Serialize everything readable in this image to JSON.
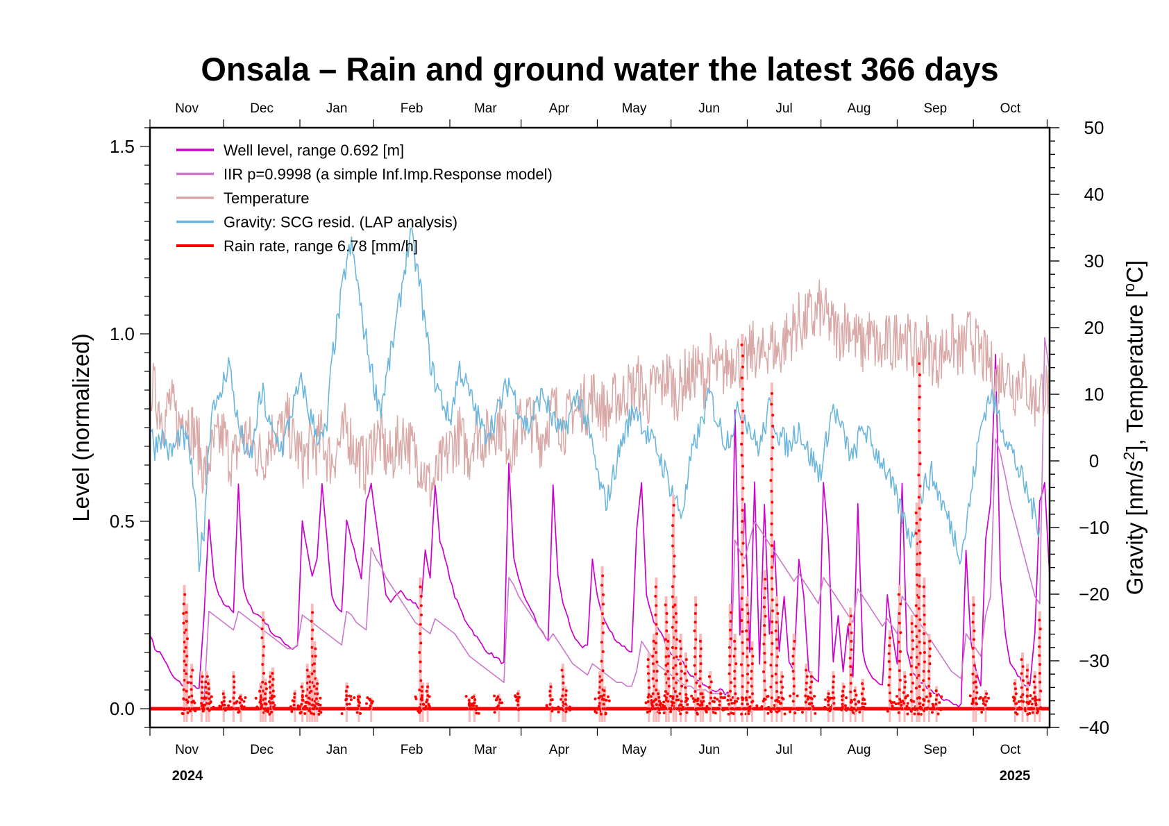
{
  "chart_data": {
    "type": "line",
    "title": "Onsala – Rain and ground water the latest 366 days",
    "xlabel": "",
    "ylabel": "Level (normalized)",
    "y2label_parts": [
      "Gravity [nm/s",
      "2",
      "], Temperature [",
      "o",
      "C]"
    ],
    "ylim": [
      -0.05,
      1.55
    ],
    "y2lim": [
      -40,
      50
    ],
    "yticks": [
      0.0,
      0.5,
      1.0,
      1.5
    ],
    "ytick_labels": [
      "0.0",
      "0.5",
      "1.0",
      "1.5"
    ],
    "y2ticks": [
      -40,
      -30,
      -20,
      -10,
      0,
      10,
      20,
      30,
      40,
      50
    ],
    "y2tick_labels": [
      "−40",
      "−30",
      "−20",
      "−10",
      "0",
      "10",
      "20",
      "30",
      "40",
      "50"
    ],
    "xlim_days": [
      0,
      366
    ],
    "month_boundaries_days": [
      0,
      30,
      61,
      91,
      122,
      151,
      182,
      212,
      243,
      273,
      304,
      335,
      365
    ],
    "months": [
      "Nov",
      "Dec",
      "Jan",
      "Feb",
      "Mar",
      "Apr",
      "May",
      "Jun",
      "Jul",
      "Aug",
      "Sep",
      "Oct"
    ],
    "years": [
      {
        "label": "2024",
        "position": "left"
      },
      {
        "label": "2025",
        "position": "right"
      }
    ],
    "grid": false,
    "legend_position": "top-left",
    "series": [
      {
        "name": "Well level, range 0.692 [m]",
        "axis": "left",
        "color": "#cc00cc",
        "sample_step_days": 2,
        "values": [
          0.2,
          0.16,
          0.15,
          0.13,
          0.1,
          0.08,
          0.07,
          0.06,
          0.07,
          0.06,
          0.05,
          0.25,
          0.5,
          0.35,
          0.3,
          0.28,
          0.27,
          0.26,
          0.6,
          0.32,
          0.28,
          0.26,
          0.25,
          0.24,
          0.22,
          0.2,
          0.19,
          0.18,
          0.17,
          0.16,
          0.17,
          0.5,
          0.42,
          0.35,
          0.4,
          0.6,
          0.45,
          0.3,
          0.27,
          0.26,
          0.5,
          0.45,
          0.4,
          0.35,
          0.55,
          0.6,
          0.5,
          0.4,
          0.3,
          0.28,
          0.3,
          0.32,
          0.3,
          0.29,
          0.28,
          0.26,
          0.42,
          0.35,
          0.6,
          0.45,
          0.4,
          0.35,
          0.3,
          0.27,
          0.24,
          0.22,
          0.2,
          0.18,
          0.16,
          0.15,
          0.14,
          0.13,
          0.12,
          0.65,
          0.4,
          0.35,
          0.3,
          0.28,
          0.25,
          0.22,
          0.2,
          0.18,
          0.6,
          0.35,
          0.28,
          0.24,
          0.2,
          0.18,
          0.16,
          0.17,
          0.4,
          0.3,
          0.25,
          0.22,
          0.2,
          0.18,
          0.17,
          0.16,
          0.15,
          0.48,
          0.6,
          0.3,
          0.25,
          0.22,
          0.2,
          0.17,
          0.15,
          0.14,
          0.13,
          0.11,
          0.09,
          0.08,
          0.07,
          0.06,
          0.05,
          0.05,
          0.05,
          0.04,
          0.04,
          0.8,
          0.2,
          0.55,
          0.15,
          0.6,
          0.12,
          0.55,
          0.2,
          0.45,
          0.15,
          0.3,
          0.12,
          0.1,
          0.4,
          0.3,
          0.1,
          0.08,
          0.07,
          0.6,
          0.45,
          0.12,
          0.25,
          0.1,
          0.22,
          0.08,
          0.55,
          0.15,
          0.1,
          0.08,
          0.07,
          0.06,
          0.3,
          0.2,
          0.12,
          0.6,
          0.15,
          0.1,
          0.08,
          0.07,
          0.06,
          0.05,
          0.04,
          0.03,
          0.02,
          0.02,
          0.01,
          0.01,
          0.42,
          0.18,
          0.1,
          0.06,
          0.45,
          0.55,
          0.95,
          0.35,
          0.2,
          0.12,
          0.1,
          0.08,
          0.06,
          0.06,
          0.2,
          0.55,
          0.6,
          0.35,
          0.32,
          0.5,
          0.45,
          0.42,
          0.38
        ]
      },
      {
        "name": "IIR p=0.9998 (a simple Inf.Imp.Response model)",
        "axis": "left",
        "color": "#cc77cc",
        "sample_step_days": 2,
        "values": [
          0.0,
          0.0,
          0.0,
          0.0,
          0.0,
          0.0,
          0.0,
          0.0,
          0.0,
          0.0,
          0.0,
          0.02,
          0.26,
          0.25,
          0.24,
          0.23,
          0.22,
          0.21,
          0.26,
          0.25,
          0.24,
          0.23,
          0.22,
          0.21,
          0.2,
          0.19,
          0.18,
          0.17,
          0.16,
          0.16,
          0.17,
          0.25,
          0.24,
          0.23,
          0.22,
          0.21,
          0.2,
          0.19,
          0.18,
          0.17,
          0.26,
          0.25,
          0.23,
          0.22,
          0.21,
          0.43,
          0.4,
          0.38,
          0.35,
          0.33,
          0.31,
          0.29,
          0.27,
          0.25,
          0.23,
          0.22,
          0.21,
          0.2,
          0.24,
          0.23,
          0.22,
          0.21,
          0.2,
          0.18,
          0.16,
          0.14,
          0.13,
          0.12,
          0.11,
          0.1,
          0.09,
          0.08,
          0.07,
          0.35,
          0.33,
          0.3,
          0.28,
          0.26,
          0.24,
          0.22,
          0.2,
          0.18,
          0.2,
          0.18,
          0.16,
          0.14,
          0.12,
          0.11,
          0.1,
          0.09,
          0.12,
          0.11,
          0.1,
          0.09,
          0.08,
          0.07,
          0.07,
          0.06,
          0.06,
          0.1,
          0.18,
          0.16,
          0.14,
          0.12,
          0.11,
          0.1,
          0.09,
          0.08,
          0.07,
          0.06,
          0.06,
          0.05,
          0.05,
          0.05,
          0.04,
          0.04,
          0.04,
          0.04,
          0.04,
          0.45,
          0.42,
          0.4,
          0.45,
          0.5,
          0.48,
          0.46,
          0.44,
          0.42,
          0.4,
          0.38,
          0.36,
          0.34,
          0.36,
          0.34,
          0.32,
          0.3,
          0.28,
          0.35,
          0.33,
          0.31,
          0.29,
          0.27,
          0.25,
          0.23,
          0.32,
          0.3,
          0.28,
          0.26,
          0.24,
          0.22,
          0.24,
          0.22,
          0.2,
          0.3,
          0.28,
          0.26,
          0.24,
          0.22,
          0.2,
          0.18,
          0.16,
          0.14,
          0.12,
          0.1,
          0.09,
          0.08,
          0.2,
          0.18,
          0.16,
          0.14,
          0.25,
          0.3,
          0.72,
          0.68,
          0.62,
          0.55,
          0.5,
          0.45,
          0.4,
          0.35,
          0.3,
          0.28,
          0.99,
          0.9,
          0.8,
          0.7,
          0.6,
          0.5,
          0.42,
          0.35
        ]
      },
      {
        "name": "Temperature",
        "axis": "right",
        "color": "#d9a9a7",
        "sample_step_days": 2,
        "values": [
          12,
          10,
          8,
          6,
          9,
          7,
          5,
          8,
          6,
          4,
          2,
          -2,
          0,
          2,
          3,
          4,
          1,
          0,
          2,
          4,
          3,
          2,
          1,
          0,
          3,
          4,
          5,
          4,
          6,
          3,
          2,
          0,
          1,
          3,
          2,
          4,
          1,
          0,
          2,
          3,
          5,
          3,
          1,
          0,
          -1,
          2,
          4,
          3,
          1,
          0,
          2,
          3,
          4,
          2,
          1,
          0,
          -2,
          -4,
          -3,
          -1,
          0,
          2,
          3,
          4,
          2,
          1,
          5,
          4,
          3,
          4,
          5,
          6,
          4,
          3,
          2,
          5,
          6,
          7,
          5,
          3,
          4,
          6,
          8,
          7,
          5,
          6,
          8,
          7,
          9,
          8,
          10,
          9,
          8,
          7,
          8,
          10,
          9,
          11,
          10,
          12,
          11,
          9,
          10,
          12,
          11,
          13,
          12,
          10,
          11,
          13,
          12,
          14,
          13,
          12,
          15,
          14,
          13,
          14,
          15,
          16,
          15,
          14,
          16,
          17,
          15,
          16,
          18,
          17,
          16,
          18,
          19,
          20,
          21,
          20,
          22,
          21,
          23,
          22,
          21,
          20,
          19,
          20,
          21,
          19,
          18,
          17,
          19,
          18,
          17,
          16,
          18,
          17,
          19,
          20,
          18,
          17,
          16,
          17,
          18,
          16,
          15,
          16,
          17,
          18,
          17,
          16,
          18,
          19,
          17,
          16,
          15,
          14,
          12,
          13,
          14,
          12,
          11,
          13,
          12,
          10,
          9,
          10,
          11,
          10,
          9,
          8,
          9,
          8,
          7,
          8
        ]
      },
      {
        "name": "Gravity: SCG resid. (LAP analysis)",
        "axis": "right",
        "color": "#6bb6dc",
        "sample_step_days": 2,
        "values": [
          5,
          2,
          4,
          3,
          1,
          2,
          4,
          3,
          2,
          -5,
          -15,
          -10,
          3,
          10,
          8,
          12,
          15,
          10,
          5,
          3,
          0,
          2,
          8,
          10,
          6,
          4,
          3,
          2,
          5,
          8,
          10,
          12,
          8,
          6,
          4,
          3,
          5,
          15,
          20,
          25,
          30,
          32,
          28,
          22,
          18,
          14,
          10,
          8,
          12,
          16,
          20,
          25,
          30,
          34,
          30,
          26,
          20,
          15,
          12,
          10,
          8,
          6,
          10,
          14,
          12,
          10,
          8,
          6,
          4,
          5,
          6,
          8,
          10,
          12,
          10,
          8,
          6,
          5,
          7,
          9,
          10,
          8,
          6,
          5,
          4,
          6,
          8,
          10,
          8,
          5,
          2,
          -2,
          -5,
          -6,
          -3,
          0,
          3,
          5,
          7,
          8,
          6,
          4,
          3,
          2,
          0,
          -2,
          -4,
          -6,
          -8,
          -5,
          0,
          3,
          5,
          8,
          10,
          7,
          5,
          3,
          4,
          6,
          8,
          7,
          5,
          3,
          2,
          5,
          8,
          6,
          4,
          3,
          2,
          4,
          5,
          3,
          1,
          0,
          -2,
          0,
          5,
          8,
          6,
          4,
          2,
          0,
          3,
          5,
          4,
          2,
          1,
          0,
          -2,
          -4,
          -6,
          -8,
          -10,
          -12,
          -8,
          -5,
          -3,
          -2,
          -4,
          -6,
          -8,
          -10,
          -12,
          -14,
          -10,
          -5,
          0,
          5,
          8,
          10,
          8,
          6,
          4,
          2,
          0,
          -2,
          -4,
          -6,
          -8,
          -10
        ]
      },
      {
        "name": "Rain rate, range 6.78 [mm/h]",
        "axis": "left",
        "color": "#ff0000",
        "halo_color": "#f7b9b9",
        "events_day_peak": [
          [
            14,
            0.33
          ],
          [
            15,
            0.28
          ],
          [
            17,
            0.12
          ],
          [
            21,
            0.1
          ],
          [
            23,
            0.1
          ],
          [
            24,
            0.08
          ],
          [
            30,
            0.05
          ],
          [
            34,
            0.1
          ],
          [
            37,
            0.04
          ],
          [
            45,
            0.07
          ],
          [
            46,
            0.26
          ],
          [
            47,
            0.08
          ],
          [
            49,
            0.1
          ],
          [
            50,
            0.11
          ],
          [
            59,
            0.05
          ],
          [
            62,
            0.07
          ],
          [
            64,
            0.12
          ],
          [
            65,
            0.1
          ],
          [
            66,
            0.28
          ],
          [
            67,
            0.18
          ],
          [
            68,
            0.08
          ],
          [
            80,
            0.07
          ],
          [
            85,
            0.04
          ],
          [
            90,
            0.03
          ],
          [
            110,
            0.35
          ],
          [
            111,
            0.07
          ],
          [
            113,
            0.07
          ],
          [
            130,
            0.03
          ],
          [
            132,
            0.04
          ],
          [
            142,
            0.04
          ],
          [
            150,
            0.05
          ],
          [
            163,
            0.07
          ],
          [
            168,
            0.12
          ],
          [
            169,
            0.06
          ],
          [
            183,
            0.1
          ],
          [
            184,
            0.38
          ],
          [
            185,
            0.06
          ],
          [
            203,
            0.15
          ],
          [
            205,
            0.2
          ],
          [
            206,
            0.35
          ],
          [
            207,
            0.05
          ],
          [
            210,
            0.3
          ],
          [
            211,
            0.2
          ],
          [
            213,
            0.57
          ],
          [
            214,
            0.3
          ],
          [
            216,
            0.2
          ],
          [
            218,
            0.15
          ],
          [
            222,
            0.3
          ],
          [
            224,
            0.2
          ],
          [
            225,
            0.05
          ],
          [
            228,
            0.1
          ],
          [
            232,
            0.05
          ],
          [
            236,
            0.28
          ],
          [
            238,
            0.2
          ],
          [
            241,
            1.0
          ],
          [
            243,
            0.3
          ],
          [
            245,
            0.18
          ],
          [
            250,
            0.37
          ],
          [
            253,
            0.87
          ],
          [
            255,
            0.3
          ],
          [
            257,
            0.1
          ],
          [
            262,
            0.2
          ],
          [
            267,
            0.12
          ],
          [
            269,
            0.1
          ],
          [
            276,
            0.05
          ],
          [
            278,
            0.1
          ],
          [
            282,
            0.07
          ],
          [
            285,
            0.27
          ],
          [
            287,
            0.06
          ],
          [
            290,
            0.08
          ],
          [
            301,
            0.21
          ],
          [
            305,
            0.33
          ],
          [
            307,
            0.1
          ],
          [
            310,
            0.25
          ],
          [
            312,
            0.55
          ],
          [
            313,
            0.95
          ],
          [
            315,
            0.35
          ],
          [
            317,
            0.2
          ],
          [
            320,
            0.06
          ],
          [
            335,
            0.3
          ],
          [
            336,
            0.1
          ],
          [
            340,
            0.05
          ],
          [
            352,
            0.08
          ],
          [
            355,
            0.15
          ],
          [
            357,
            0.12
          ],
          [
            360,
            0.1
          ],
          [
            362,
            0.26
          ]
        ]
      }
    ]
  }
}
